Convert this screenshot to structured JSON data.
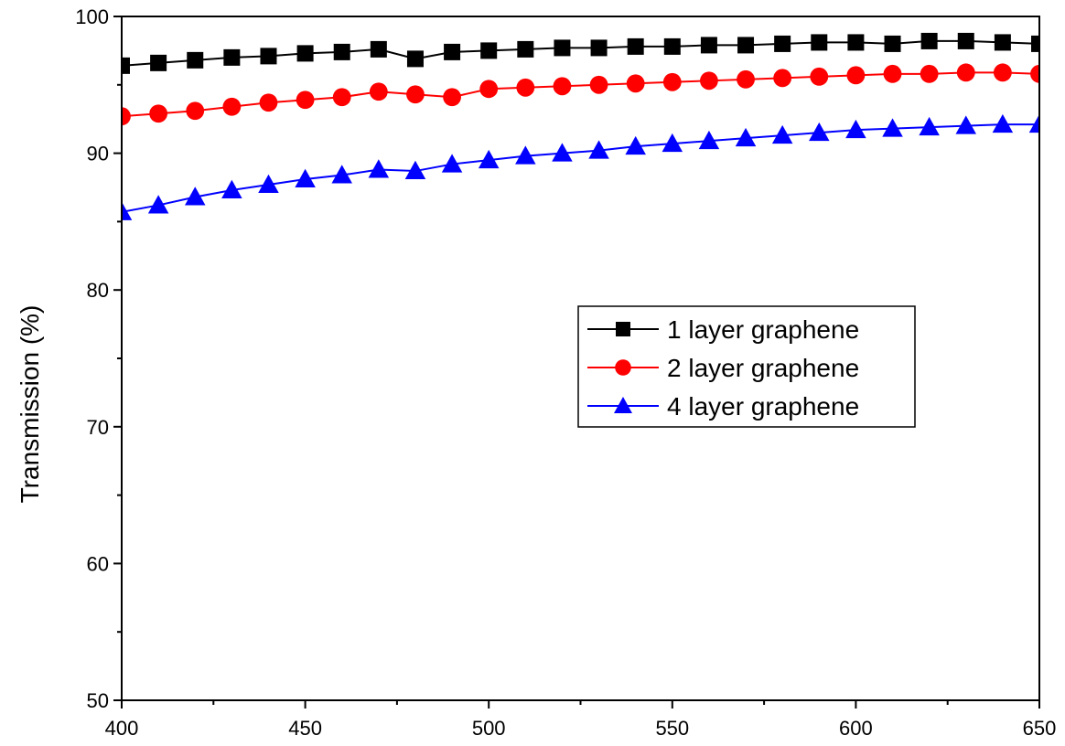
{
  "chart_data": {
    "type": "scatter",
    "xlabel": "",
    "ylabel": "Transmission (%)",
    "xlim": [
      400,
      650
    ],
    "ylim": [
      50,
      100
    ],
    "xticks": [
      400,
      450,
      500,
      550,
      600,
      650
    ],
    "yticks": [
      50,
      60,
      70,
      80,
      90,
      100
    ],
    "grid": false,
    "legend_position": "center-right",
    "series": [
      {
        "name": "1 layer graphene",
        "marker": "square",
        "color": "#000000",
        "x": [
          400,
          410,
          420,
          430,
          440,
          450,
          460,
          470,
          480,
          490,
          500,
          510,
          520,
          530,
          540,
          550,
          560,
          570,
          580,
          590,
          600,
          610,
          620,
          630,
          640,
          650
        ],
        "y": [
          96.4,
          96.6,
          96.8,
          97.0,
          97.1,
          97.3,
          97.4,
          97.6,
          96.9,
          97.4,
          97.5,
          97.6,
          97.7,
          97.7,
          97.8,
          97.8,
          97.9,
          97.9,
          98.0,
          98.1,
          98.1,
          98.0,
          98.2,
          98.2,
          98.1,
          98.0
        ]
      },
      {
        "name": "2 layer graphene",
        "marker": "circle",
        "color": "#ff0000",
        "x": [
          400,
          410,
          420,
          430,
          440,
          450,
          460,
          470,
          480,
          490,
          500,
          510,
          520,
          530,
          540,
          550,
          560,
          570,
          580,
          590,
          600,
          610,
          620,
          630,
          640,
          650
        ],
        "y": [
          92.7,
          92.9,
          93.1,
          93.4,
          93.7,
          93.9,
          94.1,
          94.5,
          94.3,
          94.1,
          94.7,
          94.8,
          94.9,
          95.0,
          95.1,
          95.2,
          95.3,
          95.4,
          95.5,
          95.6,
          95.7,
          95.8,
          95.8,
          95.9,
          95.9,
          95.8
        ]
      },
      {
        "name": "4 layer graphene",
        "marker": "triangle",
        "color": "#0000ff",
        "x": [
          400,
          410,
          420,
          430,
          440,
          450,
          460,
          470,
          480,
          490,
          500,
          510,
          520,
          530,
          540,
          550,
          560,
          570,
          580,
          590,
          600,
          610,
          620,
          630,
          640,
          650
        ],
        "y": [
          85.7,
          86.2,
          86.8,
          87.3,
          87.7,
          88.1,
          88.4,
          88.8,
          88.7,
          89.2,
          89.5,
          89.8,
          90.0,
          90.2,
          90.5,
          90.7,
          90.9,
          91.1,
          91.3,
          91.5,
          91.7,
          91.8,
          91.9,
          92.0,
          92.1,
          92.1
        ]
      }
    ]
  }
}
